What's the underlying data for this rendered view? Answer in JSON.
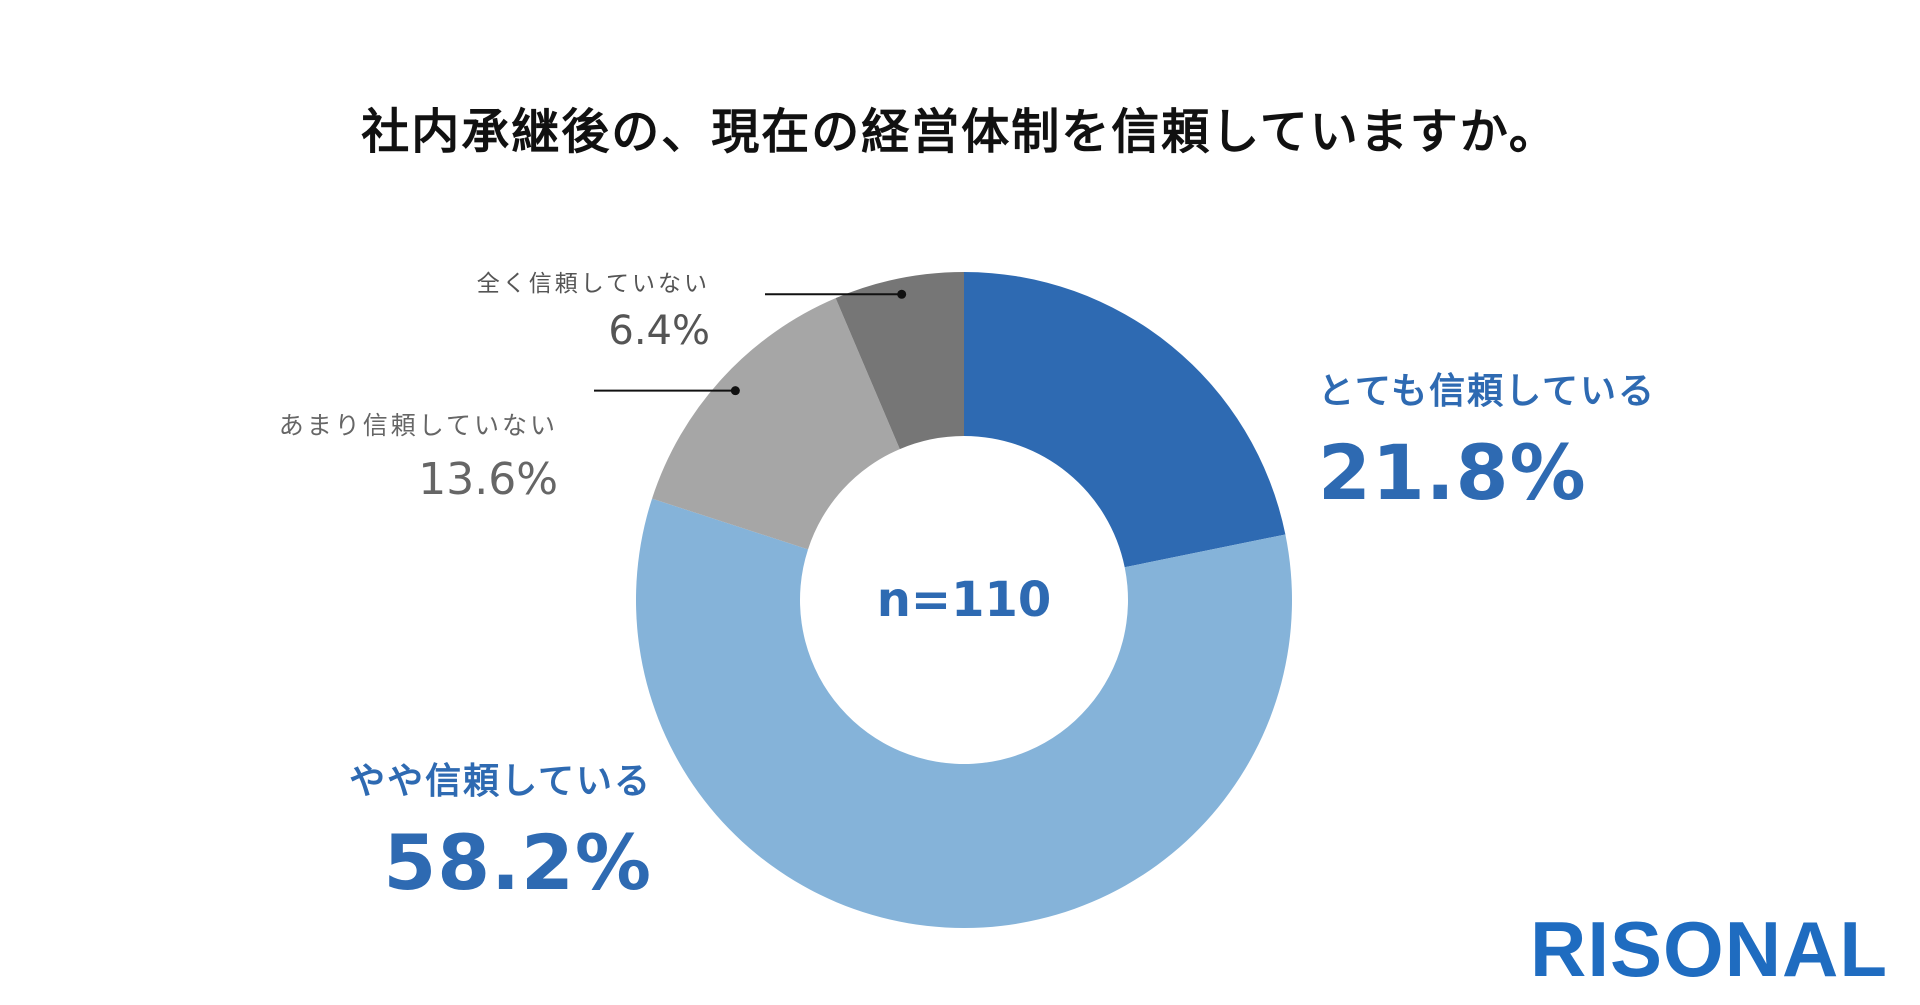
{
  "chart_data": {
    "type": "pie",
    "title": "社内承継後の、現在の経営体制を信頼していますか。",
    "center_label": "n=110",
    "slices": [
      {
        "label": "とても信頼している",
        "value": 21.8,
        "display": "21.8%",
        "color": "#2e6ab2"
      },
      {
        "label": "やや信頼している",
        "value": 58.2,
        "display": "58.2%",
        "color": "#85b3d9"
      },
      {
        "label": "あまり信頼していない",
        "value": 13.6,
        "display": "13.6%",
        "color": "#a6a6a6"
      },
      {
        "label": "全く信頼していない",
        "value": 6.4,
        "display": "6.4%",
        "color": "#767676"
      }
    ]
  },
  "brand": {
    "logo_text": "RISONAL",
    "logo_color": "#1f6cc0"
  }
}
